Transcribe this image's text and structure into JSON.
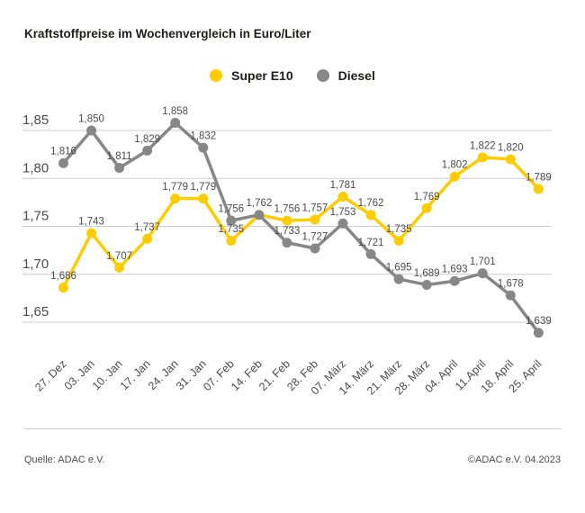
{
  "title": "Kraftstoffpreise im Wochenvergleich in Euro/Liter",
  "legend": [
    {
      "label": "Super E10",
      "color": "#ffcc00"
    },
    {
      "label": "Diesel",
      "color": "#878787"
    }
  ],
  "footer": {
    "source": "Quelle: ADAC e.V.",
    "copyright": "©ADAC e.V. 04.2023"
  },
  "chart_data": {
    "type": "line",
    "title": "Kraftstoffpreise im Wochenvergleich in Euro/Liter",
    "categories": [
      "27. Dez",
      "03. Jan",
      "10. Jan",
      "17. Jan",
      "24. Jan",
      "31. Jan",
      "07. Feb",
      "14. Feb",
      "21. Feb",
      "28. Feb",
      "07. März",
      "14. März",
      "21. März",
      "28. März",
      "04. April",
      "11.April",
      "18. April",
      "25. April"
    ],
    "series": [
      {
        "name": "Super E10",
        "color": "#ffcc00",
        "values": [
          1.686,
          1.743,
          1.707,
          1.737,
          1.779,
          1.779,
          1.735,
          1.762,
          1.756,
          1.757,
          1.781,
          1.762,
          1.735,
          1.769,
          1.802,
          1.822,
          1.82,
          1.789
        ]
      },
      {
        "name": "Diesel",
        "color": "#878787",
        "values": [
          1.816,
          1.85,
          1.811,
          1.829,
          1.858,
          1.832,
          1.756,
          1.762,
          1.733,
          1.727,
          1.753,
          1.721,
          1.695,
          1.689,
          1.693,
          1.701,
          1.678,
          1.639
        ]
      }
    ],
    "xlabel": "",
    "ylabel": "Euro/Liter",
    "y_ticks": [
      1.85,
      1.8,
      1.75,
      1.7,
      1.65
    ],
    "y_tick_labels": [
      "1,85",
      "1,80",
      "1,75",
      "1,70",
      "1,65"
    ],
    "ylim": [
      1.62,
      1.88
    ],
    "grid": true,
    "legend_position": "top-center",
    "decimal_format": "comma",
    "colors": {
      "grid_line": "#cccccc",
      "tick_label": "#4b4b4b",
      "data_label": "#4b4b4b"
    }
  }
}
